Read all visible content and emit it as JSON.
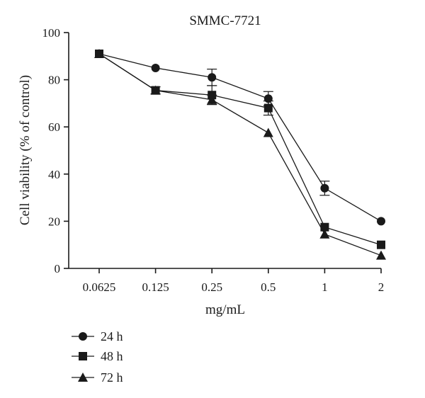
{
  "chart_data": {
    "type": "line",
    "title": "SMMC-7721",
    "xlabel": "mg/mL",
    "ylabel": "Cell viability (% of control)",
    "categories": [
      "0.0625",
      "0.125",
      "0.25",
      "0.5",
      "1",
      "2"
    ],
    "ylim": [
      0,
      100
    ],
    "yticks": [
      0,
      20,
      40,
      60,
      80,
      100
    ],
    "grid": false,
    "legend_position": "bottom-left",
    "series": [
      {
        "name": "24 h",
        "marker": "circle",
        "values": [
          91,
          85,
          81,
          72,
          34,
          20
        ],
        "errors": [
          0,
          0,
          3.5,
          3,
          3,
          0
        ]
      },
      {
        "name": "48 h",
        "marker": "square",
        "values": [
          91,
          75.5,
          73.5,
          68,
          17.5,
          10
        ],
        "errors": [
          0,
          1.5,
          4,
          3,
          0,
          0
        ]
      },
      {
        "name": "72 h",
        "marker": "triangle",
        "values": [
          91,
          75.5,
          71.5,
          57.5,
          14.5,
          5.5
        ],
        "errors": [
          0,
          0,
          2,
          0,
          0,
          0
        ]
      }
    ]
  }
}
